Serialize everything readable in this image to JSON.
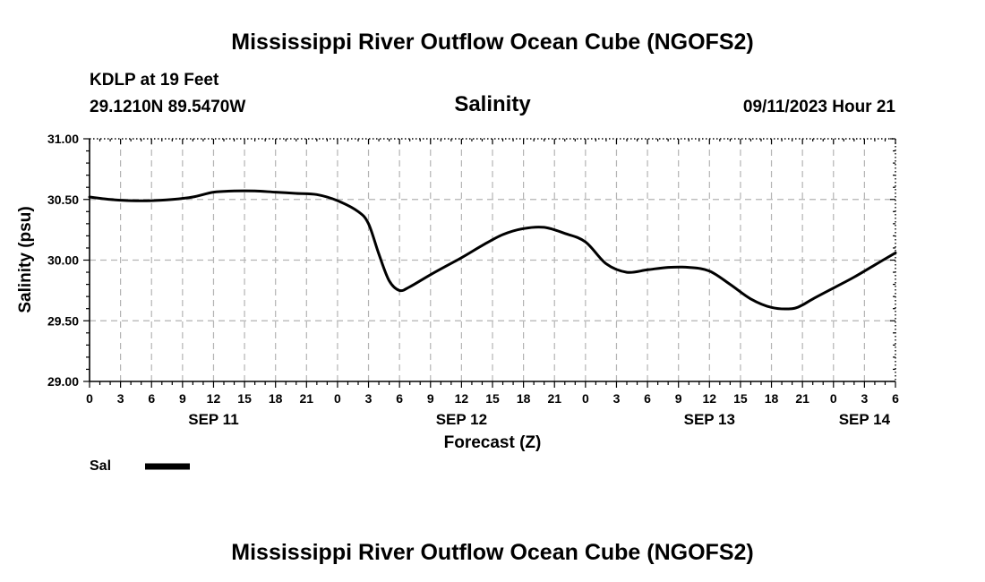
{
  "header": {
    "title_top": "Mississippi River Outflow Ocean Cube (NGOFS2)",
    "title_bottom": "Mississippi River Outflow Ocean Cube (NGOFS2)",
    "station": "KDLP at 19 Feet",
    "coords": "29.1210N  89.5470W",
    "variable": "Salinity",
    "timestamp": "09/11/2023 Hour 21"
  },
  "legend": {
    "label": "Sal",
    "color": "#000000"
  },
  "chart_data": {
    "type": "line",
    "title": "Salinity",
    "xlabel": "Forecast (Z)",
    "ylabel": "Salinity (psu)",
    "xlim": [
      0,
      78
    ],
    "ylim": [
      29.0,
      31.0
    ],
    "grid": true,
    "x_tick_values": [
      0,
      3,
      6,
      9,
      12,
      15,
      18,
      21,
      24,
      27,
      30,
      33,
      36,
      39,
      42,
      45,
      48,
      51,
      54,
      57,
      60,
      63,
      66,
      69,
      72,
      75,
      78
    ],
    "x_tick_labels": [
      "0",
      "3",
      "6",
      "9",
      "12",
      "15",
      "18",
      "21",
      "0",
      "3",
      "6",
      "9",
      "12",
      "15",
      "18",
      "21",
      "0",
      "3",
      "6",
      "9",
      "12",
      "15",
      "18",
      "21",
      "0",
      "3",
      "6"
    ],
    "y_tick_values": [
      29.0,
      29.5,
      30.0,
      30.5,
      31.0
    ],
    "y_tick_labels": [
      "29.00",
      "29.50",
      "30.00",
      "30.50",
      "31.00"
    ],
    "day_labels": [
      {
        "x": 12,
        "label": "SEP 11"
      },
      {
        "x": 36,
        "label": "SEP 12"
      },
      {
        "x": 60,
        "label": "SEP 13"
      },
      {
        "x": 75,
        "label": "SEP 14"
      }
    ],
    "series": [
      {
        "name": "Sal",
        "x": [
          0,
          2,
          4,
          6,
          8,
          10,
          12,
          14,
          16,
          18,
          20,
          22,
          24,
          26,
          27,
          28,
          29,
          30,
          31,
          33,
          36,
          38,
          40,
          42,
          44,
          46,
          48,
          50,
          52,
          54,
          56,
          58,
          60,
          62,
          64,
          66,
          68,
          69,
          70,
          72,
          74,
          76,
          78
        ],
        "y": [
          30.52,
          30.5,
          30.49,
          30.49,
          30.5,
          30.52,
          30.56,
          30.57,
          30.57,
          30.56,
          30.55,
          30.54,
          30.49,
          30.4,
          30.3,
          30.05,
          29.83,
          29.75,
          29.78,
          29.88,
          30.02,
          30.12,
          30.21,
          30.26,
          30.27,
          30.22,
          30.15,
          29.97,
          29.9,
          29.92,
          29.94,
          29.94,
          29.91,
          29.8,
          29.68,
          29.61,
          29.6,
          29.63,
          29.68,
          29.77,
          29.86,
          29.96,
          30.06
        ]
      }
    ]
  }
}
